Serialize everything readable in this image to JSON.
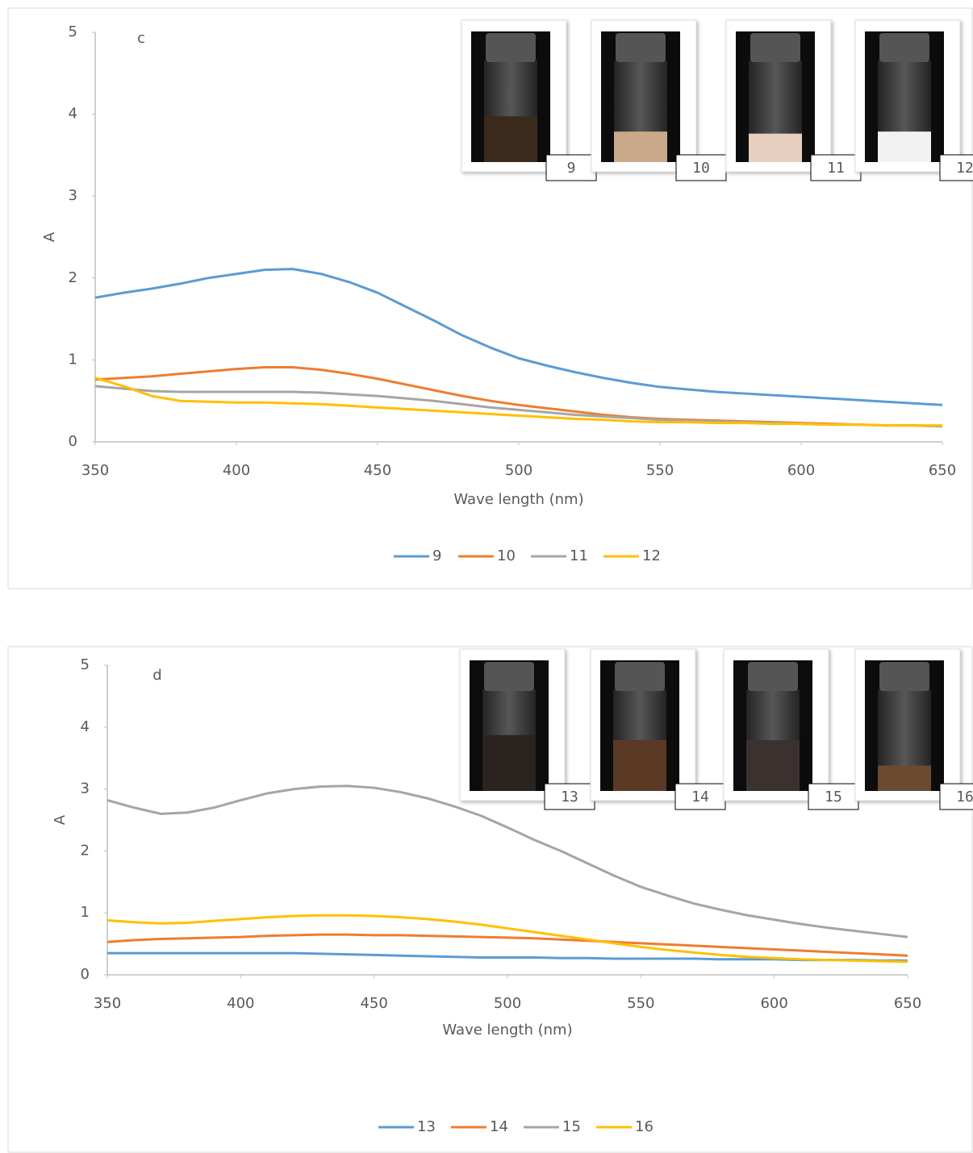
{
  "chart_data": [
    {
      "type": "line",
      "annotation": "c",
      "xlabel": "Wave length (nm)",
      "ylabel": "A",
      "x": [
        350,
        360,
        370,
        380,
        390,
        400,
        410,
        420,
        430,
        440,
        450,
        460,
        470,
        480,
        490,
        500,
        510,
        520,
        530,
        540,
        550,
        560,
        570,
        580,
        590,
        600,
        610,
        620,
        630,
        640,
        650
      ],
      "xlim": [
        350,
        650
      ],
      "xticks": [
        350,
        400,
        450,
        500,
        550,
        600,
        650
      ],
      "ylim": [
        0,
        5
      ],
      "yticks": [
        0,
        1,
        2,
        3,
        4,
        5
      ],
      "grid": false,
      "legend": "bottom",
      "series": [
        {
          "name": "9",
          "color": "#5b9bd5",
          "values": [
            1.76,
            1.82,
            1.87,
            1.93,
            2.0,
            2.05,
            2.1,
            2.11,
            2.05,
            1.95,
            1.82,
            1.65,
            1.48,
            1.3,
            1.15,
            1.02,
            0.93,
            0.85,
            0.78,
            0.72,
            0.67,
            0.64,
            0.61,
            0.59,
            0.57,
            0.55,
            0.53,
            0.51,
            0.49,
            0.47,
            0.45
          ]
        },
        {
          "name": "10",
          "color": "#ed7d31",
          "values": [
            0.76,
            0.78,
            0.8,
            0.83,
            0.86,
            0.89,
            0.91,
            0.91,
            0.88,
            0.83,
            0.77,
            0.7,
            0.63,
            0.56,
            0.5,
            0.45,
            0.41,
            0.37,
            0.33,
            0.3,
            0.28,
            0.27,
            0.26,
            0.25,
            0.24,
            0.23,
            0.22,
            0.21,
            0.2,
            0.2,
            0.19
          ]
        },
        {
          "name": "11",
          "color": "#a5a5a5",
          "values": [
            0.68,
            0.65,
            0.62,
            0.61,
            0.61,
            0.61,
            0.61,
            0.61,
            0.6,
            0.58,
            0.56,
            0.53,
            0.5,
            0.46,
            0.42,
            0.39,
            0.36,
            0.33,
            0.31,
            0.29,
            0.27,
            0.26,
            0.25,
            0.24,
            0.23,
            0.22,
            0.21,
            0.21,
            0.2,
            0.2,
            0.19
          ]
        },
        {
          "name": "12",
          "color": "#ffc000",
          "values": [
            0.78,
            0.68,
            0.56,
            0.5,
            0.49,
            0.48,
            0.48,
            0.47,
            0.46,
            0.44,
            0.42,
            0.4,
            0.38,
            0.36,
            0.34,
            0.32,
            0.3,
            0.28,
            0.27,
            0.25,
            0.24,
            0.24,
            0.23,
            0.23,
            0.22,
            0.22,
            0.21,
            0.21,
            0.2,
            0.2,
            0.2
          ]
        }
      ]
    },
    {
      "type": "line",
      "annotation": "d",
      "xlabel": "Wave length (nm)",
      "ylabel": "A",
      "x": [
        350,
        360,
        370,
        380,
        390,
        400,
        410,
        420,
        430,
        440,
        450,
        460,
        470,
        480,
        490,
        500,
        510,
        520,
        530,
        540,
        550,
        560,
        570,
        580,
        590,
        600,
        610,
        620,
        630,
        640,
        650
      ],
      "xlim": [
        350,
        650
      ],
      "xticks": [
        350,
        400,
        450,
        500,
        550,
        600,
        650
      ],
      "ylim": [
        0,
        5
      ],
      "yticks": [
        0,
        1,
        2,
        3,
        4,
        5
      ],
      "grid": false,
      "legend": "bottom",
      "series": [
        {
          "name": "13",
          "color": "#5b9bd5",
          "values": [
            0.35,
            0.35,
            0.35,
            0.35,
            0.35,
            0.35,
            0.35,
            0.35,
            0.34,
            0.33,
            0.32,
            0.31,
            0.3,
            0.29,
            0.28,
            0.28,
            0.28,
            0.27,
            0.27,
            0.26,
            0.26,
            0.26,
            0.26,
            0.25,
            0.25,
            0.25,
            0.24,
            0.24,
            0.24,
            0.23,
            0.23
          ]
        },
        {
          "name": "14",
          "color": "#ed7d31",
          "values": [
            0.53,
            0.56,
            0.58,
            0.59,
            0.6,
            0.61,
            0.63,
            0.64,
            0.65,
            0.65,
            0.64,
            0.64,
            0.63,
            0.62,
            0.61,
            0.6,
            0.59,
            0.57,
            0.55,
            0.53,
            0.51,
            0.49,
            0.47,
            0.45,
            0.43,
            0.41,
            0.39,
            0.37,
            0.35,
            0.33,
            0.31
          ]
        },
        {
          "name": "15",
          "color": "#a5a5a5",
          "values": [
            2.82,
            2.7,
            2.6,
            2.62,
            2.7,
            2.82,
            2.93,
            3.0,
            3.04,
            3.05,
            3.02,
            2.95,
            2.85,
            2.72,
            2.57,
            2.38,
            2.18,
            2.0,
            1.8,
            1.6,
            1.42,
            1.28,
            1.15,
            1.05,
            0.96,
            0.89,
            0.82,
            0.76,
            0.71,
            0.66,
            0.61
          ]
        },
        {
          "name": "16",
          "color": "#ffc000",
          "values": [
            0.88,
            0.85,
            0.83,
            0.84,
            0.87,
            0.9,
            0.93,
            0.95,
            0.96,
            0.96,
            0.95,
            0.93,
            0.9,
            0.86,
            0.81,
            0.75,
            0.69,
            0.63,
            0.57,
            0.51,
            0.45,
            0.4,
            0.36,
            0.32,
            0.29,
            0.27,
            0.25,
            0.24,
            0.23,
            0.22,
            0.21
          ]
        }
      ]
    }
  ]
}
